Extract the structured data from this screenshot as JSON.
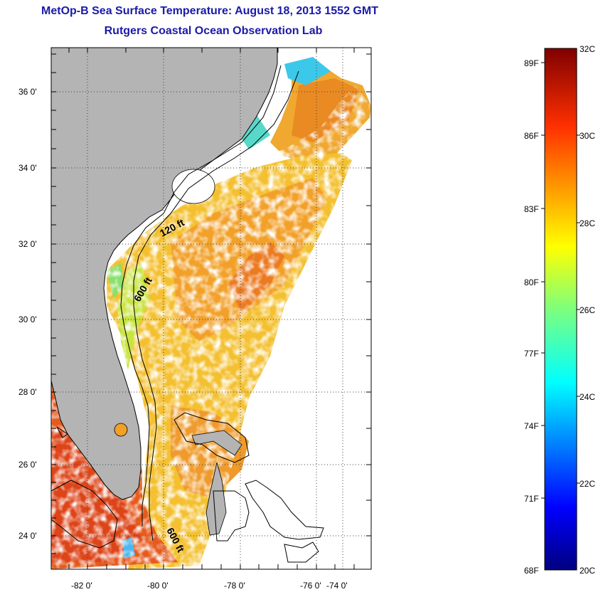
{
  "header": {
    "title": "MetOp-B Sea Surface Temperature:  August 18, 2013 1552 GMT",
    "subtitle": "Rutgers Coastal Ocean Observation Lab"
  },
  "map": {
    "latitude_labels": [
      "36 0'",
      "34 0'",
      "32 0'",
      "30 0'",
      "28 0'",
      "26 0'",
      "24 0'"
    ],
    "longitude_labels": [
      "-82 0'",
      "-80 0'",
      "-78 0'",
      "-76 0'",
      "-74 0'"
    ],
    "bathymetry_labels": [
      "120 ft",
      "600 ft",
      "600 ft"
    ],
    "land_color": "#b4b4b4",
    "grid": "dotted"
  },
  "colorbar": {
    "fahrenheit_labels": [
      "89F",
      "86F",
      "83F",
      "80F",
      "77F",
      "74F",
      "71F",
      "68F"
    ],
    "celsius_labels": [
      "32C",
      "30C",
      "28C",
      "26C",
      "24C",
      "22C",
      "20C"
    ],
    "colormap": "jet"
  }
}
